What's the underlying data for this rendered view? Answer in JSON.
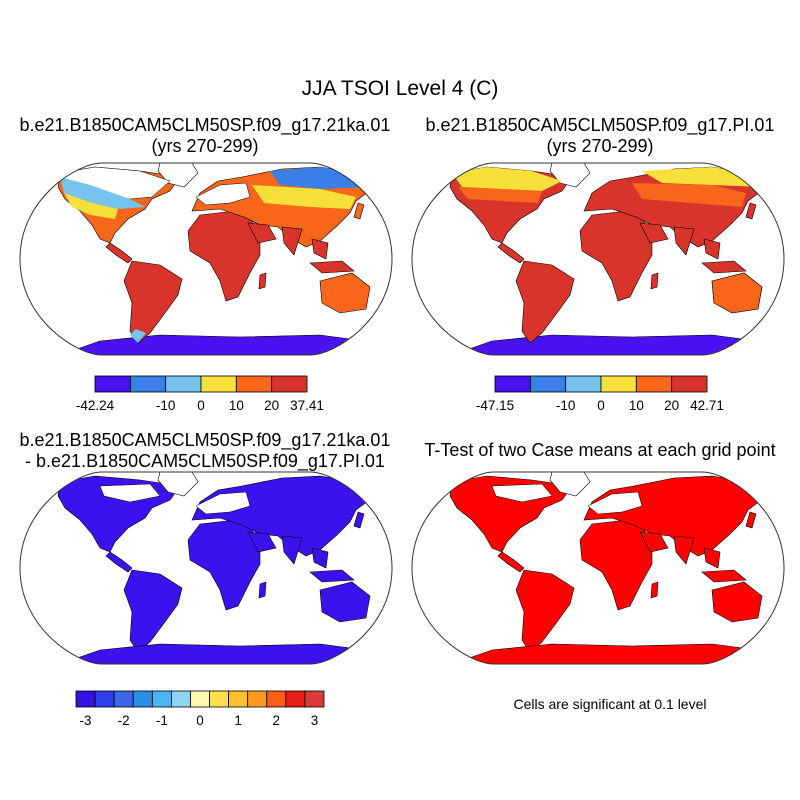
{
  "main_title": "JJA TSOI Level 4 (C)",
  "panels": {
    "top_left": {
      "title_line1": "b.e21.B1850CAM5CLM50SP.f09_g17.21ka.01",
      "title_line2": "(yrs 270-299)",
      "colorbar": {
        "colors": [
          "#4a12f0",
          "#3b7fe8",
          "#76c3ee",
          "#f8e03a",
          "#f7661a",
          "#d9342b"
        ],
        "labels": [
          "-42.24",
          "-10",
          "0",
          "10",
          "20",
          "37.41"
        ]
      }
    },
    "top_right": {
      "title_line1": "b.e21.B1850CAM5CLM50SP.f09_g17.PI.01",
      "title_line2": "(yrs 270-299)",
      "colorbar": {
        "colors": [
          "#4a12f0",
          "#3b7fe8",
          "#76c3ee",
          "#f8e03a",
          "#f7661a",
          "#d9342b"
        ],
        "labels": [
          "-47.15",
          "-10",
          "0",
          "10",
          "20",
          "42.71"
        ]
      }
    },
    "bottom_left": {
      "title_line1": "b.e21.B1850CAM5CLM50SP.f09_g17.21ka.01",
      "title_line2": "- b.e21.B1850CAM5CLM50SP.f09_g17.PI.01",
      "colorbar": {
        "colors": [
          "#3311e0",
          "#2f3ff0",
          "#3e66e8",
          "#2b8fe6",
          "#4db3f1",
          "#8fd4f3",
          "#fff6b0",
          "#ffe04a",
          "#ffbf2e",
          "#ff9a1e",
          "#f85e18",
          "#e61e14",
          "#d83d35"
        ],
        "labels": [
          "-3",
          "-2",
          "-1",
          "0",
          "1",
          "2",
          "3"
        ]
      }
    },
    "bottom_right": {
      "title": "T-Test of two Case means at each grid point",
      "note": "Cells are significant at 0.1 level"
    }
  },
  "colors": {
    "map_frame": "#333333",
    "coastline": "#000000",
    "diff_fill": "#3b12ee",
    "ttest_fill": "#ff0000"
  }
}
